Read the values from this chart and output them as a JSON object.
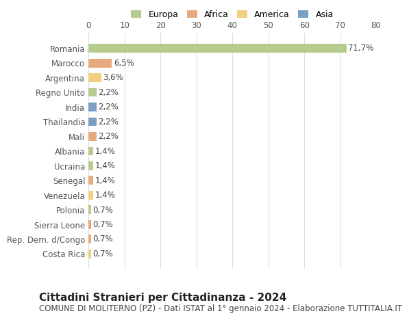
{
  "countries": [
    "Romania",
    "Marocco",
    "Argentina",
    "Regno Unito",
    "India",
    "Thailandia",
    "Mali",
    "Albania",
    "Ucraina",
    "Senegal",
    "Venezuela",
    "Polonia",
    "Sierra Leone",
    "Rep. Dem. d/Congo",
    "Costa Rica"
  ],
  "values": [
    71.7,
    6.5,
    3.6,
    2.2,
    2.2,
    2.2,
    2.2,
    1.4,
    1.4,
    1.4,
    1.4,
    0.7,
    0.7,
    0.7,
    0.7
  ],
  "labels": [
    "71,7%",
    "6,5%",
    "3,6%",
    "2,2%",
    "2,2%",
    "2,2%",
    "2,2%",
    "1,4%",
    "1,4%",
    "1,4%",
    "1,4%",
    "0,7%",
    "0,7%",
    "0,7%",
    "0,7%"
  ],
  "continents": [
    "Europa",
    "Africa",
    "America",
    "Europa",
    "Asia",
    "Asia",
    "Africa",
    "Europa",
    "Europa",
    "Africa",
    "America",
    "Europa",
    "Africa",
    "Africa",
    "America"
  ],
  "continent_colors": {
    "Europa": "#b5cc8e",
    "Africa": "#e8a97e",
    "America": "#f0d080",
    "Asia": "#7a9fc2"
  },
  "legend_order": [
    "Europa",
    "Africa",
    "America",
    "Asia"
  ],
  "title": "Cittadini Stranieri per Cittadinanza - 2024",
  "subtitle": "COMUNE DI MOLITERNO (PZ) - Dati ISTAT al 1° gennaio 2024 - Elaborazione TUTTITALIA.IT",
  "xlim": [
    0,
    80
  ],
  "xticks": [
    0,
    10,
    20,
    30,
    40,
    50,
    60,
    70,
    80
  ],
  "background_color": "#ffffff",
  "grid_color": "#dddddd",
  "bar_height": 0.6,
  "label_fontsize": 8.5,
  "tick_fontsize": 8.5,
  "title_fontsize": 11,
  "subtitle_fontsize": 8.5
}
